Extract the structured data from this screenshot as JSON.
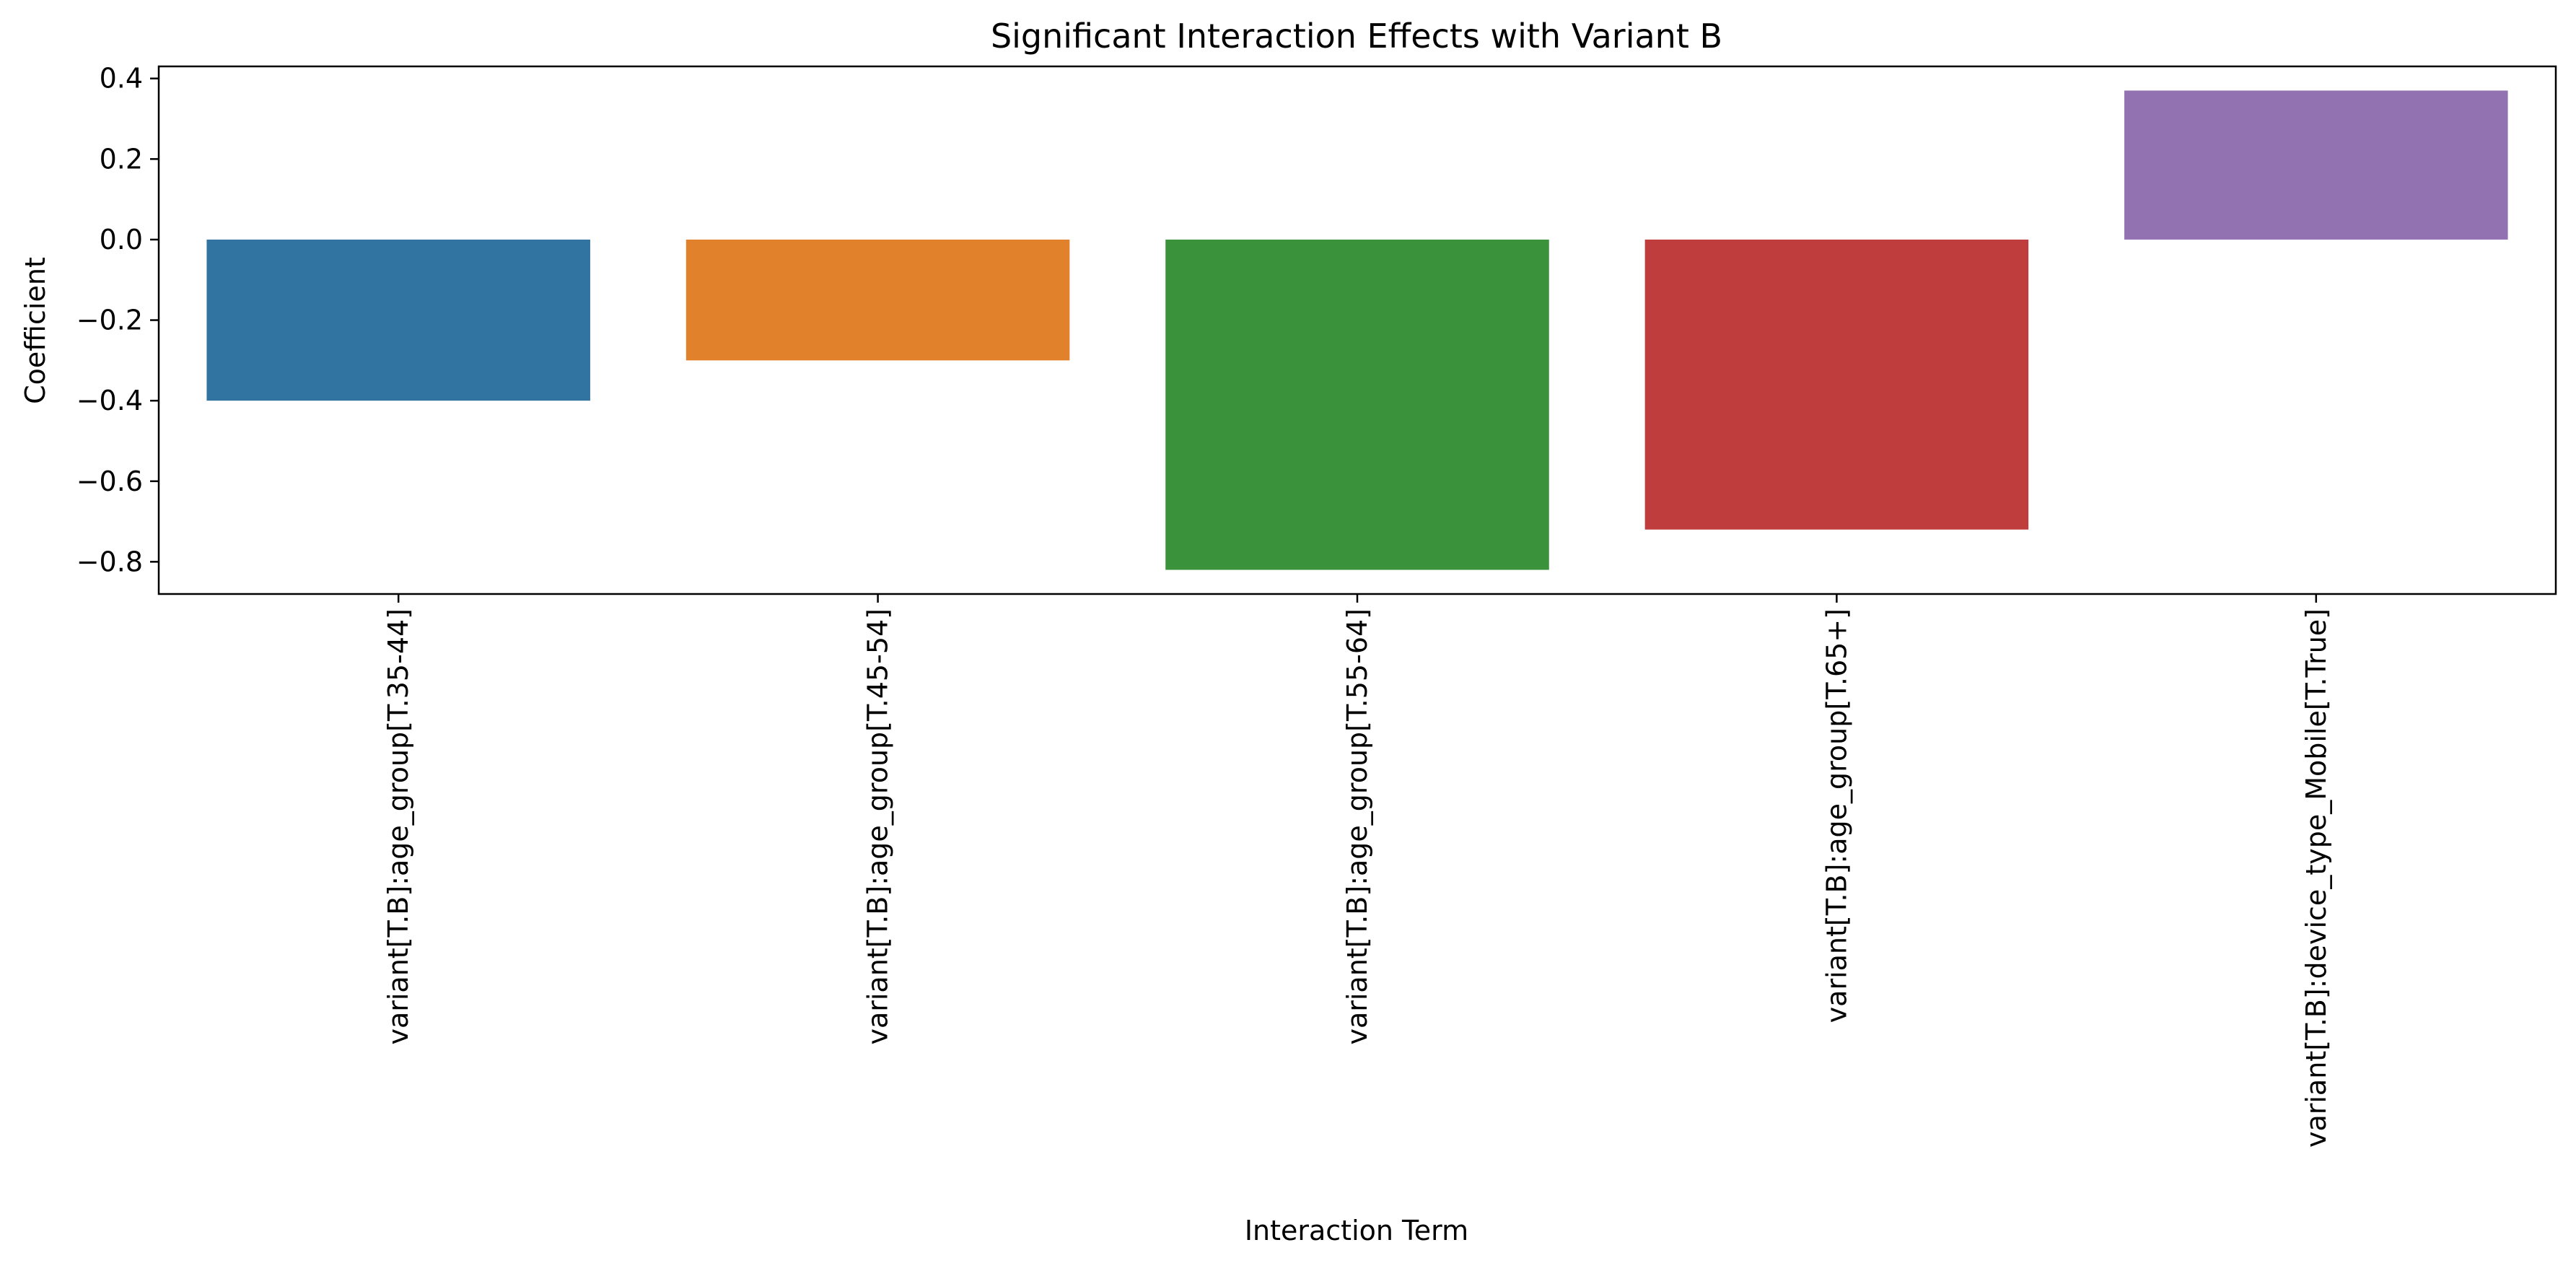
{
  "chart_data": {
    "type": "bar",
    "title": "Significant Interaction Effects with Variant B",
    "xlabel": "Interaction Term",
    "ylabel": "Coefficient",
    "categories": [
      "variant[T.B]:age_group[T.35-44]",
      "variant[T.B]:age_group[T.45-54]",
      "variant[T.B]:age_group[T.55-64]",
      "variant[T.B]:age_group[T.65+]",
      "variant[T.B]:device_type_Mobile[T.True]"
    ],
    "values": [
      -0.4,
      -0.3,
      -0.82,
      -0.72,
      0.37
    ],
    "colors": [
      "#3274a1",
      "#e1812c",
      "#3a923a",
      "#c03d3e",
      "#9372b2"
    ],
    "ylim": [
      -0.88,
      0.43
    ],
    "yticks": [
      0.4,
      0.2,
      0.0,
      -0.2,
      -0.4,
      -0.6,
      -0.8
    ],
    "ytick_labels": [
      "0.4",
      "0.2",
      "0.0",
      "−0.2",
      "−0.4",
      "−0.6",
      "−0.8"
    ],
    "grid": false,
    "legend": "none"
  }
}
